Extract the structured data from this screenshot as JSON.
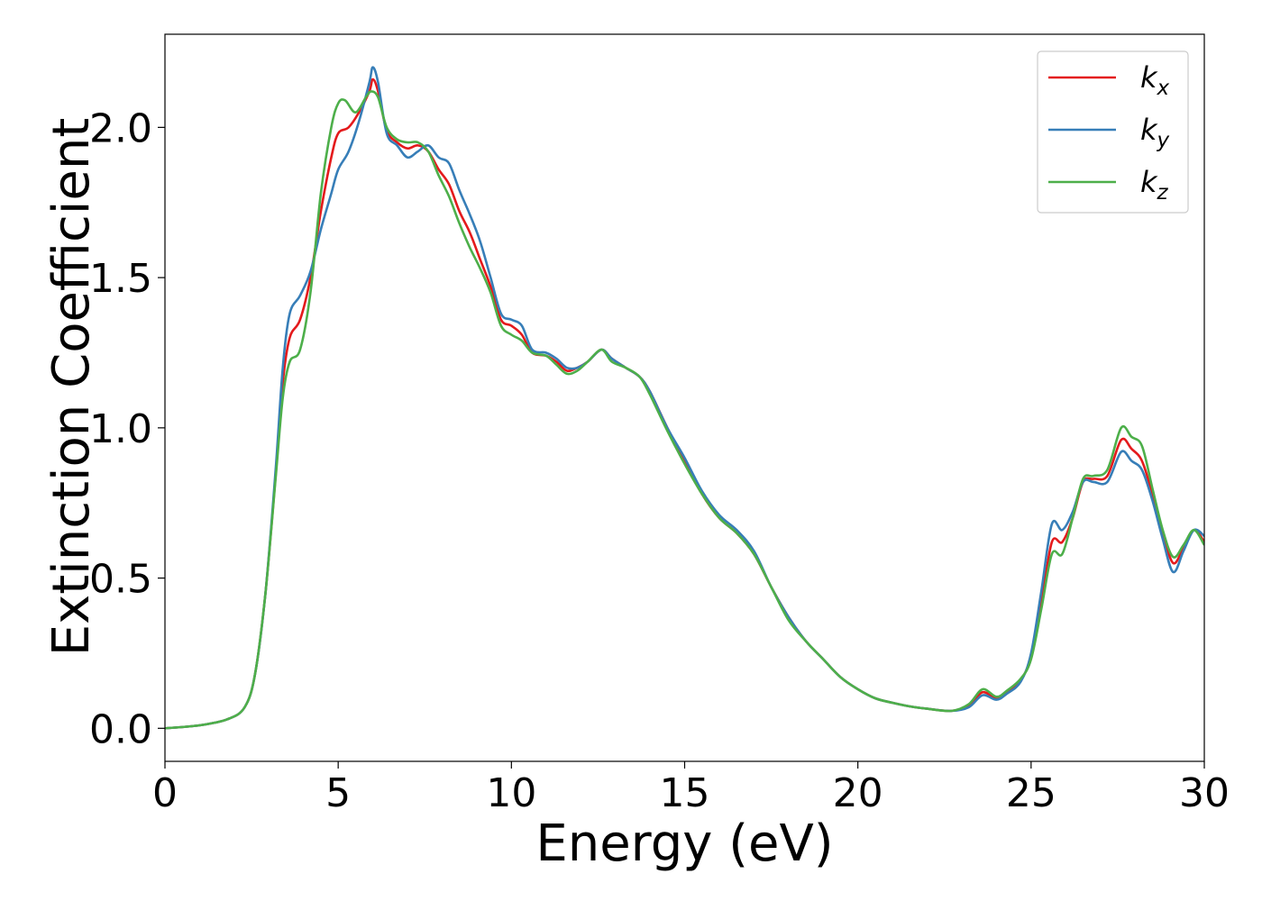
{
  "chart_data": {
    "type": "line",
    "title": "",
    "xlabel": "Energy (eV)",
    "ylabel": "Extinction Coefficient",
    "xlim": [
      0,
      30
    ],
    "ylim": [
      -0.11,
      2.31
    ],
    "xticks": [
      0,
      5,
      10,
      15,
      20,
      25,
      30
    ],
    "yticks": [
      0.0,
      0.5,
      1.0,
      1.5,
      2.0
    ],
    "xtick_labels": [
      "0",
      "5",
      "10",
      "15",
      "20",
      "25",
      "30"
    ],
    "ytick_labels": [
      "0.0",
      "0.5",
      "1.0",
      "1.5",
      "2.0"
    ],
    "grid": false,
    "legend_position": "top-right",
    "series": [
      {
        "name": "k",
        "subscript": "x",
        "color": "#e41a1c",
        "points": [
          [
            0,
            0
          ],
          [
            1,
            0.01
          ],
          [
            1.8,
            0.03
          ],
          [
            2.3,
            0.07
          ],
          [
            2.6,
            0.18
          ],
          [
            2.9,
            0.45
          ],
          [
            3.2,
            0.85
          ],
          [
            3.4,
            1.15
          ],
          [
            3.6,
            1.3
          ],
          [
            3.9,
            1.36
          ],
          [
            4.2,
            1.5
          ],
          [
            4.5,
            1.72
          ],
          [
            4.8,
            1.9
          ],
          [
            5.0,
            1.98
          ],
          [
            5.3,
            2.0
          ],
          [
            5.6,
            2.05
          ],
          [
            5.9,
            2.12
          ],
          [
            6.0,
            2.16
          ],
          [
            6.15,
            2.12
          ],
          [
            6.4,
            1.99
          ],
          [
            6.7,
            1.95
          ],
          [
            7.0,
            1.93
          ],
          [
            7.3,
            1.94
          ],
          [
            7.6,
            1.92
          ],
          [
            7.9,
            1.86
          ],
          [
            8.2,
            1.81
          ],
          [
            8.5,
            1.72
          ],
          [
            8.8,
            1.65
          ],
          [
            9.1,
            1.56
          ],
          [
            9.4,
            1.47
          ],
          [
            9.7,
            1.36
          ],
          [
            10.0,
            1.34
          ],
          [
            10.3,
            1.31
          ],
          [
            10.6,
            1.25
          ],
          [
            11.0,
            1.24
          ],
          [
            11.3,
            1.22
          ],
          [
            11.6,
            1.19
          ],
          [
            11.9,
            1.2
          ],
          [
            12.2,
            1.22
          ],
          [
            12.6,
            1.26
          ],
          [
            12.9,
            1.23
          ],
          [
            13.3,
            1.2
          ],
          [
            13.7,
            1.17
          ],
          [
            14.0,
            1.12
          ],
          [
            14.5,
            1.0
          ],
          [
            15.0,
            0.89
          ],
          [
            15.5,
            0.78
          ],
          [
            16.0,
            0.7
          ],
          [
            16.5,
            0.65
          ],
          [
            17.0,
            0.58
          ],
          [
            17.5,
            0.47
          ],
          [
            18.0,
            0.37
          ],
          [
            18.5,
            0.29
          ],
          [
            19.0,
            0.23
          ],
          [
            19.5,
            0.17
          ],
          [
            20.0,
            0.13
          ],
          [
            20.5,
            0.1
          ],
          [
            21.0,
            0.085
          ],
          [
            21.5,
            0.073
          ],
          [
            22.0,
            0.065
          ],
          [
            22.7,
            0.058
          ],
          [
            23.2,
            0.075
          ],
          [
            23.6,
            0.12
          ],
          [
            24.0,
            0.1
          ],
          [
            24.3,
            0.12
          ],
          [
            24.7,
            0.16
          ],
          [
            25.0,
            0.24
          ],
          [
            25.3,
            0.42
          ],
          [
            25.6,
            0.62
          ],
          [
            25.9,
            0.62
          ],
          [
            26.2,
            0.7
          ],
          [
            26.5,
            0.82
          ],
          [
            26.8,
            0.83
          ],
          [
            27.2,
            0.84
          ],
          [
            27.6,
            0.96
          ],
          [
            27.9,
            0.93
          ],
          [
            28.2,
            0.89
          ],
          [
            28.5,
            0.78
          ],
          [
            28.8,
            0.65
          ],
          [
            29.1,
            0.55
          ],
          [
            29.4,
            0.6
          ],
          [
            29.7,
            0.66
          ],
          [
            30.0,
            0.62
          ]
        ]
      },
      {
        "name": "k",
        "subscript": "y",
        "color": "#377eb8",
        "points": [
          [
            0,
            0
          ],
          [
            1,
            0.01
          ],
          [
            1.8,
            0.03
          ],
          [
            2.3,
            0.07
          ],
          [
            2.6,
            0.18
          ],
          [
            2.9,
            0.45
          ],
          [
            3.2,
            0.87
          ],
          [
            3.4,
            1.2
          ],
          [
            3.6,
            1.38
          ],
          [
            3.9,
            1.44
          ],
          [
            4.2,
            1.52
          ],
          [
            4.5,
            1.66
          ],
          [
            4.8,
            1.78
          ],
          [
            5.0,
            1.86
          ],
          [
            5.3,
            1.92
          ],
          [
            5.6,
            2.02
          ],
          [
            5.9,
            2.15
          ],
          [
            6.0,
            2.2
          ],
          [
            6.15,
            2.15
          ],
          [
            6.4,
            1.98
          ],
          [
            6.7,
            1.94
          ],
          [
            7.0,
            1.9
          ],
          [
            7.3,
            1.92
          ],
          [
            7.6,
            1.94
          ],
          [
            7.9,
            1.9
          ],
          [
            8.2,
            1.88
          ],
          [
            8.5,
            1.79
          ],
          [
            8.8,
            1.71
          ],
          [
            9.1,
            1.62
          ],
          [
            9.4,
            1.5
          ],
          [
            9.7,
            1.38
          ],
          [
            10.0,
            1.36
          ],
          [
            10.3,
            1.34
          ],
          [
            10.6,
            1.26
          ],
          [
            11.0,
            1.25
          ],
          [
            11.3,
            1.23
          ],
          [
            11.6,
            1.2
          ],
          [
            11.9,
            1.2
          ],
          [
            12.2,
            1.22
          ],
          [
            12.6,
            1.26
          ],
          [
            12.9,
            1.23
          ],
          [
            13.3,
            1.2
          ],
          [
            13.7,
            1.17
          ],
          [
            14.0,
            1.12
          ],
          [
            14.5,
            1.0
          ],
          [
            15.0,
            0.9
          ],
          [
            15.5,
            0.79
          ],
          [
            16.0,
            0.71
          ],
          [
            16.5,
            0.66
          ],
          [
            17.0,
            0.59
          ],
          [
            17.5,
            0.47
          ],
          [
            18.0,
            0.37
          ],
          [
            18.5,
            0.29
          ],
          [
            19.0,
            0.23
          ],
          [
            19.5,
            0.17
          ],
          [
            20.0,
            0.13
          ],
          [
            20.5,
            0.1
          ],
          [
            21.0,
            0.085
          ],
          [
            21.5,
            0.073
          ],
          [
            22.0,
            0.065
          ],
          [
            22.7,
            0.058
          ],
          [
            23.2,
            0.07
          ],
          [
            23.6,
            0.11
          ],
          [
            24.0,
            0.095
          ],
          [
            24.3,
            0.115
          ],
          [
            24.7,
            0.155
          ],
          [
            25.0,
            0.25
          ],
          [
            25.3,
            0.46
          ],
          [
            25.6,
            0.68
          ],
          [
            25.9,
            0.66
          ],
          [
            26.2,
            0.72
          ],
          [
            26.5,
            0.82
          ],
          [
            26.8,
            0.82
          ],
          [
            27.2,
            0.82
          ],
          [
            27.6,
            0.92
          ],
          [
            27.9,
            0.89
          ],
          [
            28.2,
            0.86
          ],
          [
            28.5,
            0.76
          ],
          [
            28.8,
            0.63
          ],
          [
            29.1,
            0.52
          ],
          [
            29.4,
            0.59
          ],
          [
            29.7,
            0.66
          ],
          [
            30.0,
            0.64
          ]
        ]
      },
      {
        "name": "k",
        "subscript": "z",
        "color": "#4daf4a",
        "points": [
          [
            0,
            0
          ],
          [
            1,
            0.01
          ],
          [
            1.8,
            0.03
          ],
          [
            2.3,
            0.07
          ],
          [
            2.6,
            0.18
          ],
          [
            2.9,
            0.45
          ],
          [
            3.2,
            0.84
          ],
          [
            3.4,
            1.1
          ],
          [
            3.6,
            1.22
          ],
          [
            3.9,
            1.26
          ],
          [
            4.2,
            1.45
          ],
          [
            4.5,
            1.78
          ],
          [
            4.8,
            2.0
          ],
          [
            5.0,
            2.08
          ],
          [
            5.2,
            2.09
          ],
          [
            5.5,
            2.05
          ],
          [
            5.8,
            2.1
          ],
          [
            5.95,
            2.12
          ],
          [
            6.15,
            2.1
          ],
          [
            6.4,
            2.0
          ],
          [
            6.7,
            1.96
          ],
          [
            7.0,
            1.95
          ],
          [
            7.3,
            1.95
          ],
          [
            7.6,
            1.92
          ],
          [
            7.9,
            1.84
          ],
          [
            8.2,
            1.77
          ],
          [
            8.5,
            1.68
          ],
          [
            8.8,
            1.6
          ],
          [
            9.1,
            1.53
          ],
          [
            9.4,
            1.45
          ],
          [
            9.7,
            1.34
          ],
          [
            10.0,
            1.31
          ],
          [
            10.3,
            1.29
          ],
          [
            10.6,
            1.25
          ],
          [
            11.0,
            1.24
          ],
          [
            11.3,
            1.21
          ],
          [
            11.6,
            1.18
          ],
          [
            11.9,
            1.19
          ],
          [
            12.2,
            1.22
          ],
          [
            12.6,
            1.26
          ],
          [
            12.9,
            1.22
          ],
          [
            13.3,
            1.2
          ],
          [
            13.7,
            1.17
          ],
          [
            14.0,
            1.11
          ],
          [
            14.5,
            0.99
          ],
          [
            15.0,
            0.88
          ],
          [
            15.5,
            0.78
          ],
          [
            16.0,
            0.7
          ],
          [
            16.5,
            0.65
          ],
          [
            17.0,
            0.58
          ],
          [
            17.5,
            0.47
          ],
          [
            18.0,
            0.36
          ],
          [
            18.5,
            0.29
          ],
          [
            19.0,
            0.23
          ],
          [
            19.5,
            0.17
          ],
          [
            20.0,
            0.13
          ],
          [
            20.5,
            0.1
          ],
          [
            21.0,
            0.085
          ],
          [
            21.5,
            0.073
          ],
          [
            22.0,
            0.065
          ],
          [
            22.7,
            0.058
          ],
          [
            23.2,
            0.08
          ],
          [
            23.6,
            0.13
          ],
          [
            24.0,
            0.105
          ],
          [
            24.3,
            0.125
          ],
          [
            24.7,
            0.165
          ],
          [
            25.0,
            0.23
          ],
          [
            25.3,
            0.4
          ],
          [
            25.6,
            0.58
          ],
          [
            25.9,
            0.58
          ],
          [
            26.2,
            0.7
          ],
          [
            26.5,
            0.83
          ],
          [
            26.8,
            0.84
          ],
          [
            27.2,
            0.86
          ],
          [
            27.6,
            1.0
          ],
          [
            27.9,
            0.97
          ],
          [
            28.2,
            0.94
          ],
          [
            28.5,
            0.8
          ],
          [
            28.8,
            0.66
          ],
          [
            29.1,
            0.57
          ],
          [
            29.4,
            0.61
          ],
          [
            29.7,
            0.66
          ],
          [
            30.0,
            0.61
          ]
        ]
      }
    ]
  }
}
